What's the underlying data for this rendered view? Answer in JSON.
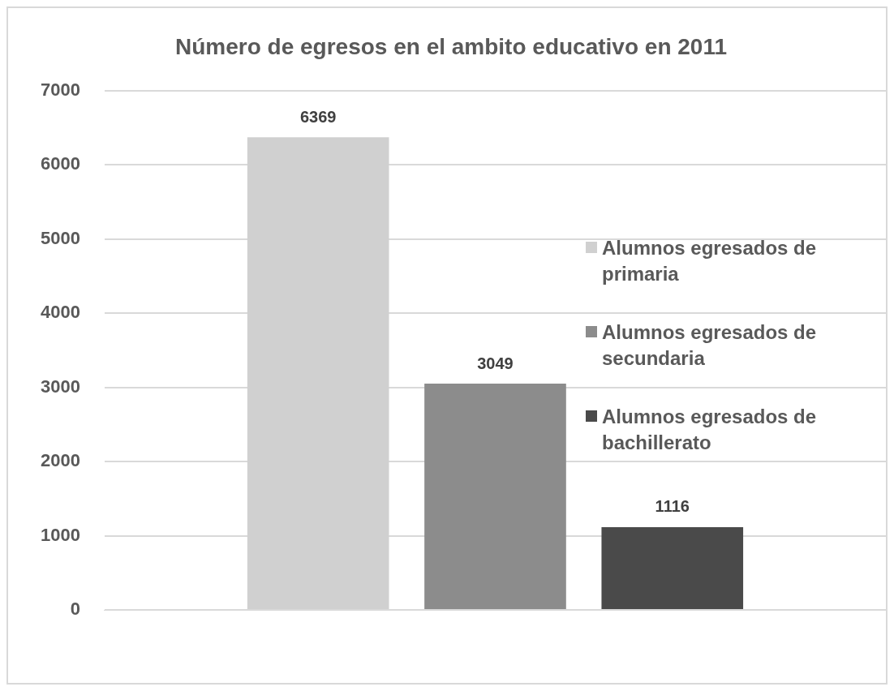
{
  "chart_data": {
    "type": "bar",
    "title": "Número de egresos en el ambito educativo en 2011",
    "categories": [
      null
    ],
    "series": [
      {
        "name": "Alumnos egresados de primaria",
        "color": "#d0d0d0",
        "values": [
          6369
        ]
      },
      {
        "name": "Alumnos egresados de secundaria",
        "color": "#8c8c8c",
        "values": [
          3049
        ]
      },
      {
        "name": "Alumnos egresados de bachillerato",
        "color": "#4a4a4a",
        "values": [
          1116
        ]
      }
    ],
    "ylim": [
      0,
      7000
    ],
    "yticks": [
      0,
      1000,
      2000,
      3000,
      4000,
      5000,
      6000,
      7000
    ],
    "grid": "y",
    "legend": "right",
    "data_labels": true
  }
}
